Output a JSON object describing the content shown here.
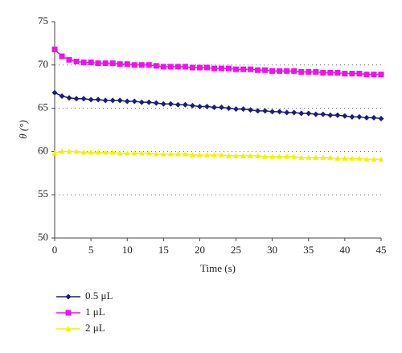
{
  "chart_data": {
    "type": "line",
    "y_label": "θ (°)",
    "x_label": "Time (s)",
    "x": [
      0,
      1,
      2,
      3,
      4,
      5,
      6,
      7,
      8,
      9,
      10,
      11,
      12,
      13,
      14,
      15,
      16,
      17,
      18,
      19,
      20,
      21,
      22,
      23,
      24,
      25,
      26,
      27,
      28,
      29,
      30,
      31,
      32,
      33,
      34,
      35,
      36,
      37,
      38,
      39,
      40,
      41,
      42,
      43,
      44,
      45
    ],
    "series": [
      {
        "name": "0.5 μL",
        "color": "#1c1c7e",
        "marker": "diamond",
        "values": [
          66.8,
          66.4,
          66.2,
          66.1,
          66.1,
          66.0,
          66.0,
          65.9,
          65.9,
          65.9,
          65.8,
          65.8,
          65.7,
          65.7,
          65.6,
          65.5,
          65.5,
          65.4,
          65.4,
          65.3,
          65.2,
          65.2,
          65.1,
          65.1,
          65.0,
          64.9,
          64.9,
          64.8,
          64.7,
          64.7,
          64.6,
          64.6,
          64.5,
          64.5,
          64.4,
          64.4,
          64.3,
          64.3,
          64.2,
          64.2,
          64.1,
          64.0,
          64.0,
          63.9,
          63.9,
          63.8
        ]
      },
      {
        "name": "1 μL",
        "color": "#ee11ee",
        "marker": "square",
        "values": [
          71.8,
          71.0,
          70.6,
          70.4,
          70.3,
          70.3,
          70.2,
          70.2,
          70.2,
          70.1,
          70.1,
          70.0,
          70.0,
          70.0,
          69.9,
          69.8,
          69.8,
          69.8,
          69.8,
          69.7,
          69.7,
          69.7,
          69.6,
          69.6,
          69.6,
          69.5,
          69.5,
          69.5,
          69.4,
          69.4,
          69.3,
          69.3,
          69.3,
          69.3,
          69.2,
          69.2,
          69.2,
          69.1,
          69.1,
          69.1,
          69.0,
          69.0,
          69.0,
          68.9,
          68.9,
          68.9
        ]
      },
      {
        "name": "2 μL",
        "color": "#f2f200",
        "marker": "triangle",
        "values": [
          59.8,
          60.0,
          60.0,
          60.0,
          59.9,
          59.9,
          59.9,
          59.9,
          59.9,
          59.8,
          59.8,
          59.8,
          59.8,
          59.8,
          59.7,
          59.7,
          59.7,
          59.7,
          59.7,
          59.6,
          59.6,
          59.6,
          59.6,
          59.6,
          59.5,
          59.5,
          59.5,
          59.5,
          59.5,
          59.4,
          59.4,
          59.4,
          59.4,
          59.4,
          59.3,
          59.3,
          59.3,
          59.3,
          59.3,
          59.2,
          59.2,
          59.2,
          59.2,
          59.1,
          59.1,
          59.1
        ]
      }
    ],
    "xlim": [
      0,
      45
    ],
    "xticks": [
      0,
      5,
      10,
      15,
      20,
      25,
      30,
      35,
      40,
      45
    ],
    "ylim": [
      50,
      75
    ],
    "yticks": [
      50,
      55,
      60,
      65,
      70,
      75
    ],
    "grid": true
  }
}
